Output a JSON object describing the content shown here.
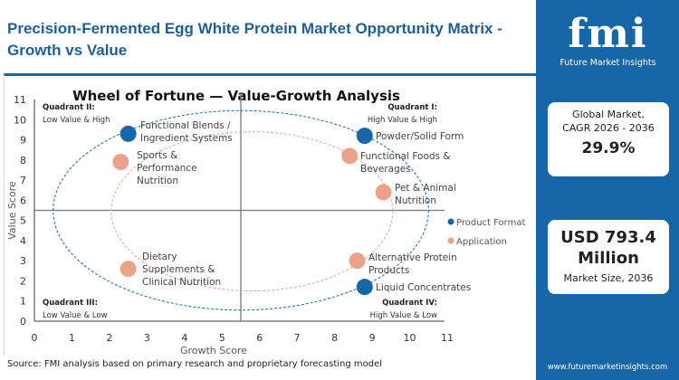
{
  "title": "Precision-Fermented Egg White Protein Market Opportunity Matrix - Growth vs Value",
  "source": "Source: FMI analysis based on primary research and proprietary forecasting model",
  "side": {
    "logo": "fmi",
    "logo_sub": "Future Market Insights",
    "card1_label1": "Global Market,",
    "card1_label2": "CAGR 2026 - 2036",
    "card1_value": "29.9%",
    "card2_value1": "USD 793.4",
    "card2_value2": "Million",
    "card2_label": "Market Size, 2036",
    "url": "www.futuremarketinsights.com"
  },
  "chart_data": {
    "type": "scatter",
    "title": "Wheel of Fortune — Value-Growth Analysis",
    "xlabel": "Growth Score",
    "ylabel": "Value Score",
    "xlim": [
      0,
      11
    ],
    "ylim": [
      0,
      11
    ],
    "xticks": [
      "0",
      "1",
      "2",
      "3",
      "4",
      "5",
      "6",
      "7",
      "8",
      "9",
      "10",
      "11"
    ],
    "yticks": [
      "0",
      "1",
      "2",
      "3",
      "4",
      "5",
      "6",
      "7",
      "8",
      "9",
      "10",
      "11"
    ],
    "grid": false,
    "legend": "right",
    "quadrants": [
      {
        "name": "Quadrant II:",
        "desc": "Low Value & High"
      },
      {
        "name": "Quadrant I:",
        "desc": "High Value & High"
      },
      {
        "name": "Quadrant III:",
        "desc": "Low Value & Low"
      },
      {
        "name": "Quadrant IV:",
        "desc": "High Value & Low"
      }
    ],
    "series": [
      {
        "name": "Product Format",
        "color": "#1666a8",
        "points": [
          {
            "label": "Functional Blends / Ingredient Systems",
            "x": 2.5,
            "y": 9.3
          },
          {
            "label": "Powder/Solid Form",
            "x": 8.8,
            "y": 9.2
          },
          {
            "label": "Liquid Concentrates",
            "x": 8.8,
            "y": 1.7
          }
        ]
      },
      {
        "name": "Application",
        "color": "#eba28b",
        "points": [
          {
            "label": "Sports & Performance Nutrition",
            "x": 2.3,
            "y": 7.9
          },
          {
            "label": "Functional Foods & Beverages",
            "x": 8.4,
            "y": 8.2
          },
          {
            "label": "Pet & Animal Nutrition",
            "x": 9.3,
            "y": 6.4
          },
          {
            "label": "Alternative Protein Products",
            "x": 8.6,
            "y": 3.0
          },
          {
            "label": "Dietary Supplements & Clinical Nutrition",
            "x": 2.5,
            "y": 2.6
          }
        ]
      }
    ]
  }
}
